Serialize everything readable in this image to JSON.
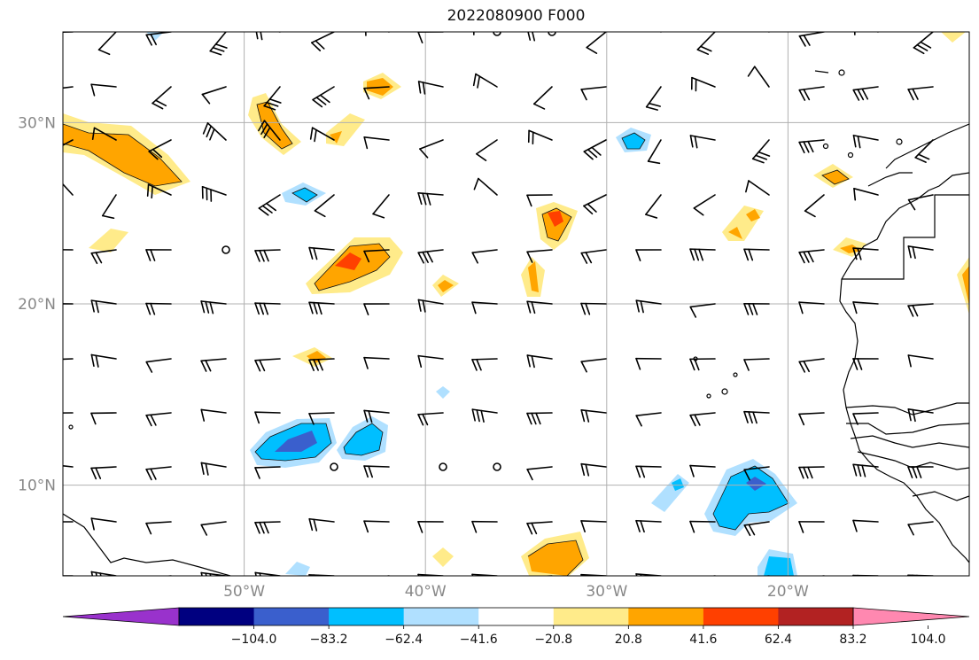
{
  "title": "2022080900 F000",
  "map": {
    "extent": {
      "lon_min": -60,
      "lon_max": -10,
      "lat_min": 5,
      "lat_max": 35
    },
    "gridlines": true,
    "lat_ticks": [
      {
        "value": 30,
        "label": "30°N"
      },
      {
        "value": 20,
        "label": "20°N"
      },
      {
        "value": 10,
        "label": "10°N"
      }
    ],
    "lon_ticks": [
      {
        "value": -50,
        "label": "50°W"
      },
      {
        "value": -40,
        "label": "40°W"
      },
      {
        "value": -30,
        "label": "30°W"
      },
      {
        "value": -20,
        "label": "20°W"
      }
    ]
  },
  "colorbar": {
    "extend": "both",
    "levels": [
      -104.0,
      -83.2,
      -62.4,
      -41.6,
      -20.8,
      20.8,
      41.6,
      62.4,
      83.2,
      104.0
    ],
    "tick_labels": [
      "−104.0",
      "−83.2",
      "−62.4",
      "−41.6",
      "−20.8",
      "20.8",
      "41.6",
      "62.4",
      "83.2",
      "104.0"
    ],
    "colors": [
      "#9932cc",
      "#000080",
      "#3a5fcd",
      "#00bfff",
      "#b0e0ff",
      "#ffffff",
      "#ffeb8a",
      "#ffa500",
      "#ff4000",
      "#b22222",
      "#ff88b0"
    ]
  }
}
